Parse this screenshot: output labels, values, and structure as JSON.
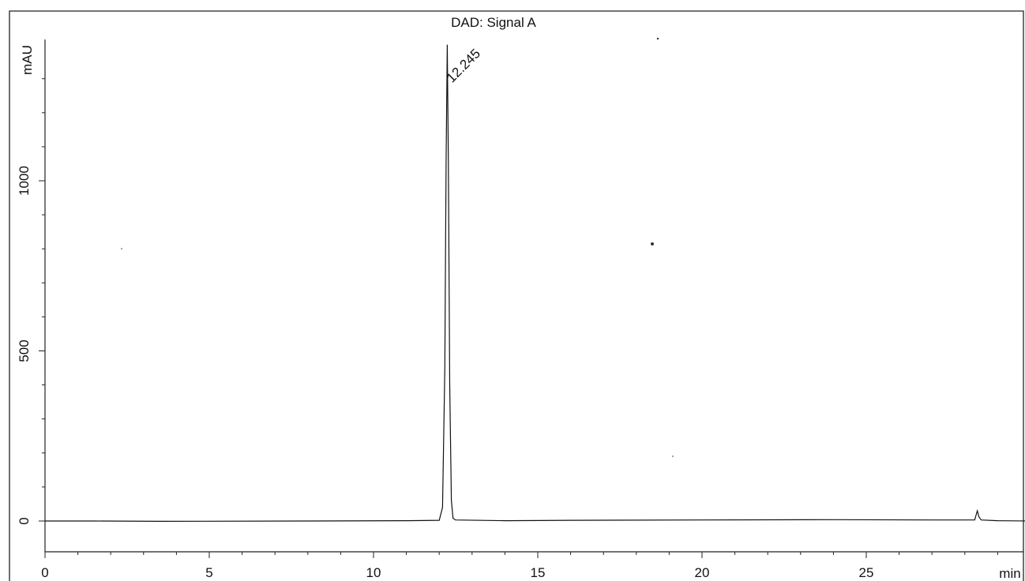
{
  "chart_data": {
    "type": "line",
    "title": "DAD: Signal A",
    "xlabel": "min",
    "ylabel": "mAU",
    "xlim": [
      0,
      30
    ],
    "ylim": [
      -90,
      1410
    ],
    "x_ticks": [
      0,
      5,
      10,
      15,
      20,
      25
    ],
    "y_ticks": [
      0,
      500,
      1000
    ],
    "grid": false,
    "legend": "none",
    "series": [
      {
        "x": [
          0,
          1.5,
          3.5,
          8.0,
          11.0,
          12.0,
          12.1,
          12.17,
          12.21,
          12.245,
          12.28,
          12.32,
          12.37,
          12.42,
          12.5,
          14.0,
          16.0,
          20.0,
          24.0,
          27.0,
          28.3,
          28.38,
          28.43,
          28.5,
          29.0,
          30.0
        ],
        "y": [
          0,
          0,
          -1,
          0,
          1,
          2,
          40,
          450,
          1050,
          1400,
          1050,
          400,
          60,
          8,
          3,
          1,
          2,
          3,
          4,
          3,
          3,
          30,
          12,
          3,
          1,
          0
        ]
      }
    ],
    "annotations": [
      {
        "text": "12.245",
        "x": 12.245,
        "y": 1400
      }
    ]
  }
}
